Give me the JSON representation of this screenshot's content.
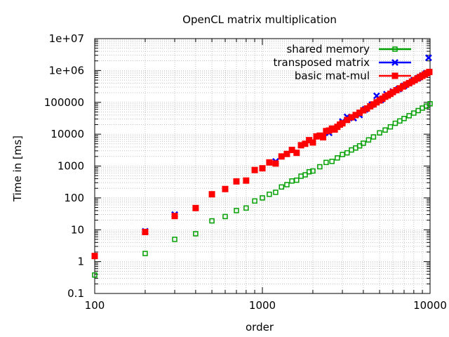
{
  "chart_data": {
    "type": "scatter",
    "title": "OpenCL matrix multiplication",
    "xlabel": "order",
    "ylabel": "Time in [ms]",
    "xscale": "log",
    "yscale": "log",
    "xlim": [
      100,
      10000
    ],
    "ylim": [
      0.1,
      10000000
    ],
    "grid": true,
    "legend_position": "top-right",
    "x_ticks": [
      {
        "value": 100,
        "label": "100"
      },
      {
        "value": 1000,
        "label": "1000"
      },
      {
        "value": 10000,
        "label": "10000"
      }
    ],
    "y_ticks": [
      {
        "value": 0.1,
        "label": "0.1"
      },
      {
        "value": 1,
        "label": "1"
      },
      {
        "value": 10,
        "label": "10"
      },
      {
        "value": 100,
        "label": "100"
      },
      {
        "value": 1000,
        "label": "1000"
      },
      {
        "value": 10000,
        "label": "10000"
      },
      {
        "value": 100000,
        "label": "100000"
      },
      {
        "value": 1000000,
        "label": "1e+06"
      },
      {
        "value": 10000000,
        "label": "1e+07"
      }
    ],
    "series": [
      {
        "name": "shared memory",
        "color": "#00a000",
        "marker": "open-square",
        "x": [
          100,
          200,
          300,
          400,
          500,
          600,
          700,
          800,
          900,
          1000,
          1100,
          1200,
          1300,
          1400,
          1500,
          1600,
          1700,
          1800,
          1900,
          2000,
          2200,
          2400,
          2600,
          2800,
          3000,
          3200,
          3400,
          3600,
          3800,
          4000,
          4300,
          4600,
          5000,
          5400,
          5800,
          6200,
          6600,
          7000,
          7500,
          8000,
          8500,
          9000,
          9500,
          10000
        ],
        "y": [
          0.38,
          1.8,
          5,
          7.5,
          19,
          26,
          40,
          48,
          80,
          100,
          130,
          150,
          220,
          260,
          340,
          360,
          480,
          530,
          660,
          700,
          950,
          1300,
          1400,
          1800,
          2300,
          2600,
          3200,
          3700,
          4300,
          5200,
          6600,
          8200,
          11000,
          13500,
          17000,
          22000,
          26000,
          31000,
          38000,
          46000,
          55000,
          66000,
          76000,
          90000
        ]
      },
      {
        "name": "transposed matrix",
        "color": "#0000ff",
        "marker": "x",
        "x": [
          200,
          300,
          1200,
          2500,
          3000,
          3200,
          3500,
          3800,
          4100,
          4500,
          4800,
          5100,
          5500,
          6000,
          6500,
          7000,
          7500,
          8000,
          8500,
          9000,
          9500,
          9800
        ],
        "y": [
          9,
          30,
          1400,
          11000,
          25000,
          35000,
          32000,
          40000,
          60000,
          85000,
          160000,
          120000,
          180000,
          220000,
          260000,
          330000,
          400000,
          500000,
          580000,
          700000,
          820000,
          2500000
        ]
      },
      {
        "name": "basic mat-mul",
        "color": "#ff0000",
        "marker": "filled-square",
        "x": [
          100,
          200,
          300,
          400,
          500,
          600,
          700,
          800,
          900,
          1000,
          1100,
          1200,
          1300,
          1400,
          1500,
          1600,
          1700,
          1800,
          1900,
          2000,
          2100,
          2200,
          2300,
          2400,
          2500,
          2600,
          2700,
          2800,
          2900,
          3000,
          3200,
          3400,
          3600,
          3800,
          4000,
          4200,
          4400,
          4600,
          4800,
          5000,
          5200,
          5400,
          5600,
          5800,
          6000,
          6300,
          6600,
          6900,
          7200,
          7500,
          7800,
          8100,
          8400,
          8700,
          9000,
          9300,
          9600,
          9900
        ],
        "y": [
          1.5,
          8.5,
          27,
          48,
          130,
          190,
          330,
          350,
          750,
          850,
          1300,
          1200,
          2000,
          2400,
          3200,
          2600,
          4500,
          5000,
          6500,
          5500,
          8500,
          9000,
          8000,
          12500,
          13000,
          15000,
          14000,
          17000,
          20000,
          22000,
          28000,
          34000,
          40000,
          47000,
          56000,
          64000,
          75000,
          86000,
          100000,
          115000,
          130000,
          150000,
          165000,
          185000,
          210000,
          240000,
          275000,
          315000,
          360000,
          400000,
          450000,
          500000,
          560000,
          620000,
          680000,
          750000,
          820000,
          900000
        ]
      }
    ]
  }
}
